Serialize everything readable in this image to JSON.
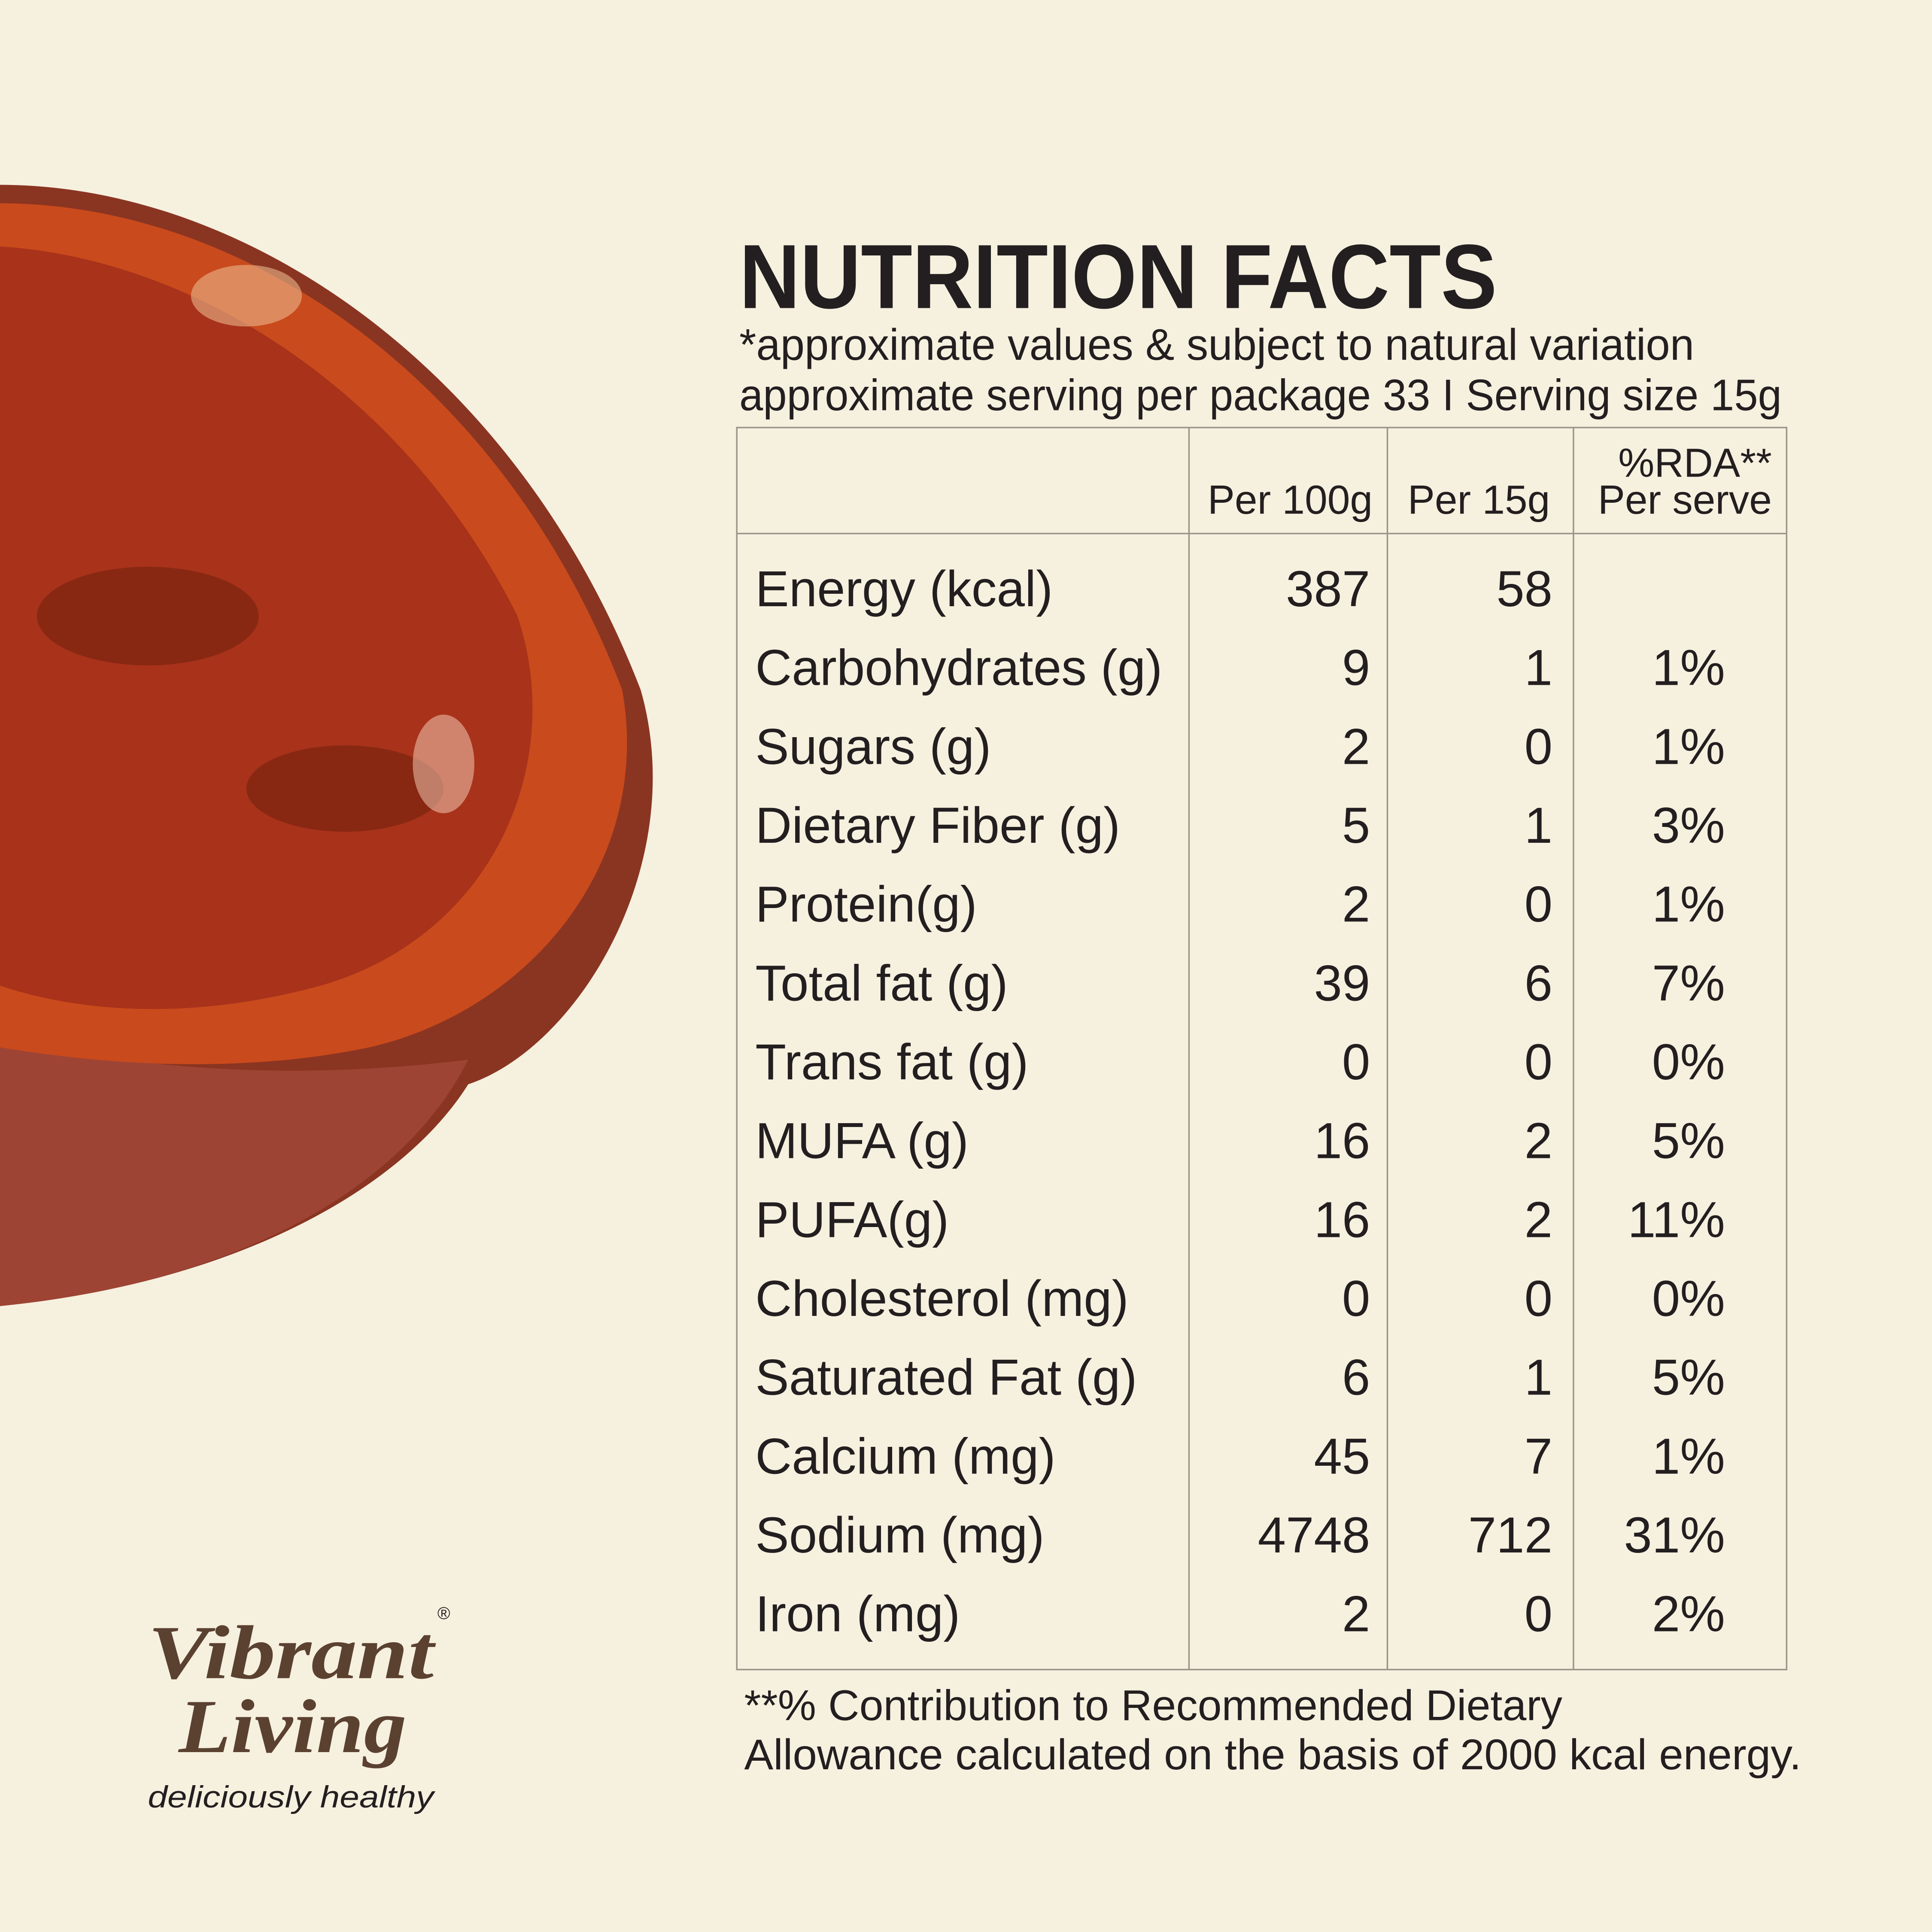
{
  "header": {
    "title": "NUTRITION FACTS",
    "subtitle": "*approximate values & subject to natural variation",
    "serving": "approximate serving per package 33 I Serving size 15g"
  },
  "table": {
    "columns": [
      "Per 100g",
      "Per 15g",
      [
        "%RDA**",
        "Per serve"
      ]
    ],
    "rows": [
      [
        "Energy (kcal)",
        387,
        58,
        null
      ],
      [
        "Carbohydrates (g)",
        9,
        1,
        "1%"
      ],
      [
        "Sugars (g)",
        2,
        0,
        "1%"
      ],
      [
        "Dietary Fiber (g)",
        5,
        1,
        "3%"
      ],
      [
        "Protein(g)",
        2,
        0,
        "1%"
      ],
      [
        "Total fat (g)",
        39,
        6,
        "7%"
      ],
      [
        "Trans fat (g)",
        0,
        0,
        "0%"
      ],
      [
        "MUFA (g)",
        16,
        2,
        "5%"
      ],
      [
        "PUFA(g)",
        16,
        2,
        "11%"
      ],
      [
        "Cholesterol (mg)",
        0,
        0,
        "0%"
      ],
      [
        "Saturated Fat (g)",
        6,
        1,
        "5%"
      ],
      [
        "Calcium (mg)",
        45,
        7,
        "1%"
      ],
      [
        "Sodium (mg)",
        4748,
        712,
        "31%"
      ],
      [
        "Iron (mg)",
        2,
        0,
        "2%"
      ]
    ]
  },
  "footnote": [
    "**% Contribution to Recommended Dietary",
    "Allowance calculated on the basis of 2000 kcal energy."
  ],
  "brand": {
    "line1": "Vibrant",
    "line2": "Living",
    "mark": "®",
    "tagline": "deliciously healthy"
  }
}
